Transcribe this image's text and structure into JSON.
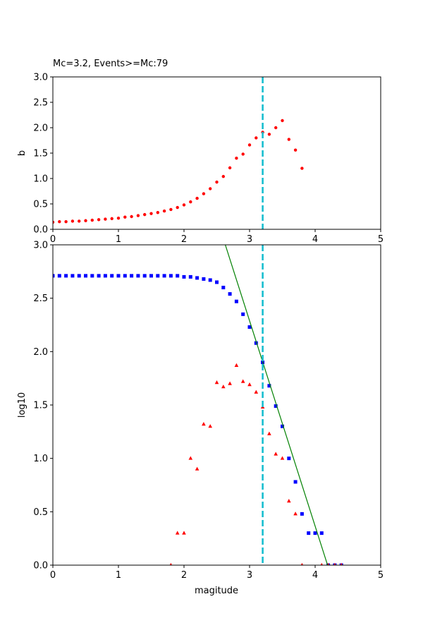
{
  "colors": {
    "b_points": "#ff0000",
    "cumulative": "#0000ff",
    "noncumulative": "#ff0000",
    "fit_line": "#008000",
    "mc_line": "#17becf",
    "axes": "#000000"
  },
  "chart_data": [
    {
      "type": "scatter",
      "title": "Mc=3.2, Events>=Mc:79",
      "xlabel": "",
      "ylabel": "b",
      "xlim": [
        0,
        5
      ],
      "ylim": [
        0,
        3
      ],
      "x_ticks": [
        "0",
        "1",
        "2",
        "3",
        "4",
        "5"
      ],
      "y_ticks": [
        "0.0",
        "0.5",
        "1.0",
        "1.5",
        "2.0",
        "2.5",
        "3.0"
      ],
      "grid": false,
      "mc": 3.2,
      "series": [
        {
          "marker": "circle",
          "x": [
            0.0,
            0.1,
            0.2,
            0.3,
            0.4,
            0.5,
            0.6,
            0.7,
            0.8,
            0.9,
            1.0,
            1.1,
            1.2,
            1.3,
            1.4,
            1.5,
            1.6,
            1.7,
            1.8,
            1.9,
            2.0,
            2.1,
            2.2,
            2.3,
            2.4,
            2.5,
            2.6,
            2.7,
            2.8,
            2.9,
            3.0,
            3.1,
            3.2,
            3.3,
            3.4,
            3.5,
            3.6,
            3.7,
            3.8
          ],
          "y": [
            0.14,
            0.15,
            0.15,
            0.16,
            0.16,
            0.17,
            0.18,
            0.19,
            0.2,
            0.21,
            0.22,
            0.24,
            0.25,
            0.27,
            0.29,
            0.31,
            0.33,
            0.36,
            0.39,
            0.43,
            0.48,
            0.54,
            0.61,
            0.7,
            0.8,
            0.93,
            1.04,
            1.21,
            1.4,
            1.48,
            1.66,
            1.8,
            1.91,
            1.87,
            2.0,
            2.14,
            1.77,
            1.56,
            1.2
          ]
        }
      ]
    },
    {
      "type": "scatter",
      "title": "",
      "xlabel": "magitude",
      "ylabel": "log10",
      "xlim": [
        0,
        5
      ],
      "ylim": [
        0,
        3
      ],
      "x_ticks": [
        "0",
        "1",
        "2",
        "3",
        "4",
        "5"
      ],
      "y_ticks": [
        "0.0",
        "0.5",
        "1.0",
        "1.5",
        "2.0",
        "2.5",
        "3.0"
      ],
      "grid": false,
      "mc": 3.2,
      "fit_line": {
        "x": [
          2.63,
          4.19
        ],
        "y": [
          3.0,
          0.0
        ]
      },
      "series": [
        {
          "marker": "square",
          "x": [
            0.0,
            0.1,
            0.2,
            0.3,
            0.4,
            0.5,
            0.6,
            0.7,
            0.8,
            0.9,
            1.0,
            1.1,
            1.2,
            1.3,
            1.4,
            1.5,
            1.6,
            1.7,
            1.8,
            1.9,
            2.0,
            2.1,
            2.2,
            2.3,
            2.4,
            2.5,
            2.6,
            2.7,
            2.8,
            2.9,
            3.0,
            3.1,
            3.2,
            3.3,
            3.4,
            3.5,
            3.6,
            3.7,
            3.8,
            3.9,
            4.0,
            4.1,
            4.2,
            4.3,
            4.4
          ],
          "y": [
            2.71,
            2.71,
            2.71,
            2.71,
            2.71,
            2.71,
            2.71,
            2.71,
            2.71,
            2.71,
            2.71,
            2.71,
            2.71,
            2.71,
            2.71,
            2.71,
            2.71,
            2.71,
            2.71,
            2.71,
            2.7,
            2.7,
            2.69,
            2.68,
            2.67,
            2.65,
            2.6,
            2.54,
            2.47,
            2.35,
            2.23,
            2.08,
            1.9,
            1.68,
            1.49,
            1.3,
            1.0,
            0.78,
            0.48,
            0.3,
            0.3,
            0.3,
            0.0,
            0.0,
            0.0
          ]
        },
        {
          "marker": "triangle",
          "x": [
            1.8,
            1.9,
            2.0,
            2.1,
            2.2,
            2.3,
            2.4,
            2.5,
            2.6,
            2.7,
            2.8,
            2.9,
            3.0,
            3.1,
            3.2,
            3.3,
            3.4,
            3.5,
            3.6,
            3.7,
            3.8,
            4.1,
            4.2,
            4.3,
            4.4
          ],
          "y": [
            0.0,
            0.3,
            0.3,
            1.0,
            0.9,
            1.32,
            1.3,
            1.71,
            1.67,
            1.7,
            1.87,
            1.72,
            1.69,
            1.62,
            1.48,
            1.23,
            1.04,
            1.0,
            0.6,
            0.48,
            0.0,
            0.0,
            0.0,
            0.0,
            0.0
          ]
        }
      ]
    }
  ]
}
